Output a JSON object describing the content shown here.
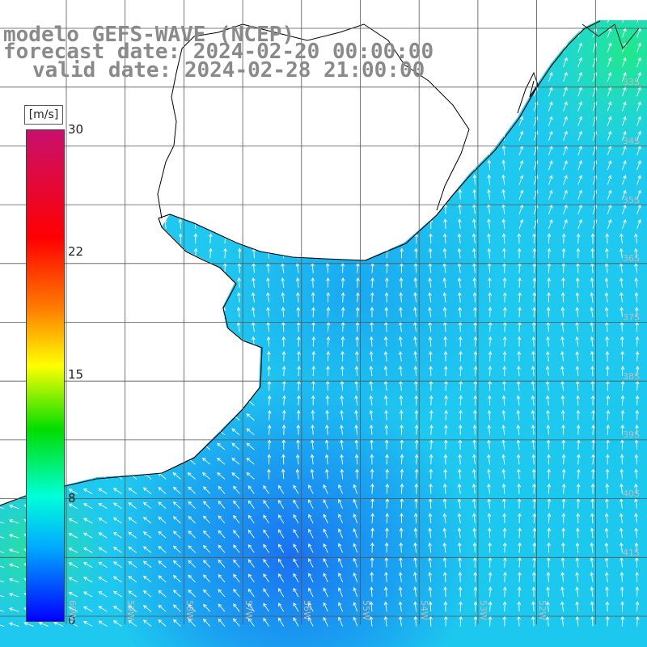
{
  "title": {
    "line1": "modelo GEFS-WAVE (NCEP)",
    "line2": "forecast date: 2024-02-20 00:00:00",
    "line3": "valid date: 2024-02-28 21:00:00"
  },
  "legend": {
    "unit": "[m/s]",
    "ticks": [
      {
        "label": "30",
        "value": 30
      },
      {
        "label": "22",
        "value": 22
      },
      {
        "label": "15",
        "value": 15
      },
      {
        "label": "8",
        "value": 8
      },
      {
        "label": "0",
        "value": 0
      }
    ],
    "colors": [
      "#c8106e",
      "#ff0000",
      "#ff7a00",
      "#ffff00",
      "#00dd00",
      "#00ffd8",
      "#00aaff",
      "#0000ff"
    ]
  },
  "grid": {
    "lat_labels": [
      "33S",
      "34S",
      "35S",
      "36S",
      "37S",
      "38S",
      "39S",
      "40S",
      "41S"
    ],
    "lon_labels": [
      "60W",
      "59W",
      "58W",
      "57W",
      "56W",
      "55W",
      "54W",
      "53W",
      "52W"
    ]
  },
  "colors": {
    "land": "#ffffff",
    "coast": "#000000",
    "grid": "#555555",
    "arrows": "#ffffff",
    "label_gray": "#8a8a8a"
  }
}
